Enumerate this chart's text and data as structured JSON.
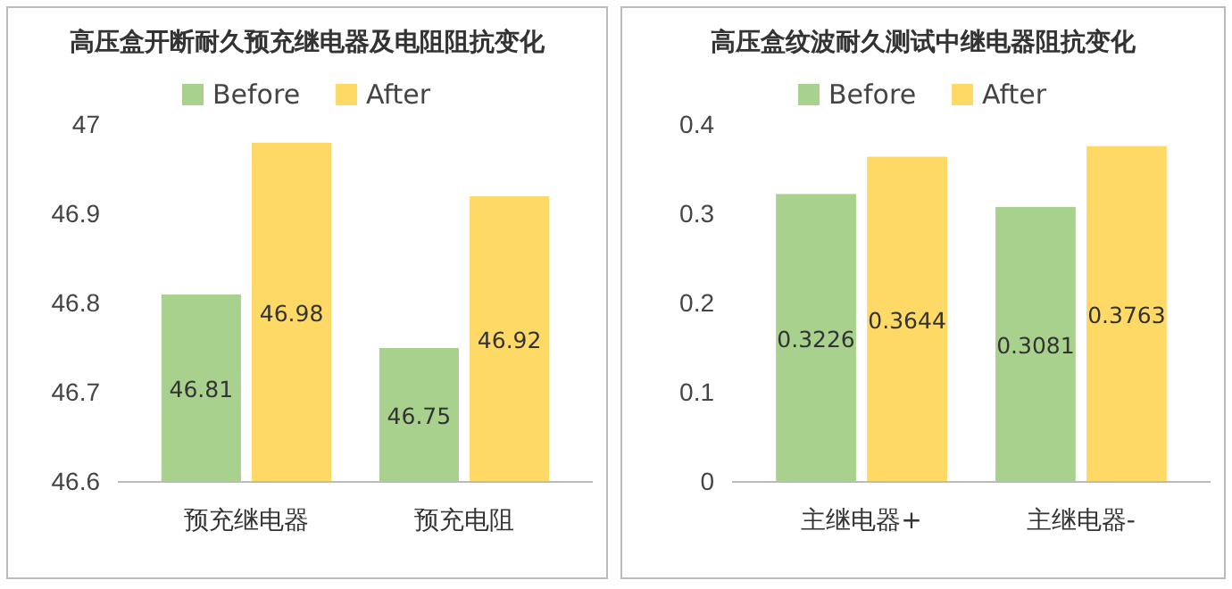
{
  "chart_data": [
    {
      "type": "bar",
      "title": "高压盒开断耐久预充继电器及电阻阻抗变化",
      "categories": [
        "预充继电器",
        "预充电阻"
      ],
      "series": [
        {
          "name": "Before",
          "color": "#a9d18e",
          "values": [
            46.81,
            46.75
          ]
        },
        {
          "name": "After",
          "color": "#ffd966",
          "values": [
            46.98,
            46.92
          ]
        }
      ],
      "ylim": [
        46.6,
        47
      ],
      "yticks": [
        46.6,
        46.7,
        46.8,
        46.9,
        47
      ],
      "data_labels": true,
      "legend": "top",
      "grid": false
    },
    {
      "type": "bar",
      "title": "高压盒纹波耐久测试中继电器阻抗变化",
      "categories": [
        "主继电器+",
        "主继电器-"
      ],
      "series": [
        {
          "name": "Before",
          "color": "#a9d18e",
          "values": [
            0.3226,
            0.3081
          ]
        },
        {
          "name": "After",
          "color": "#ffd966",
          "values": [
            0.3644,
            0.3763
          ]
        }
      ],
      "ylim": [
        0,
        0.4
      ],
      "yticks": [
        0,
        0.1,
        0.2,
        0.3,
        0.4
      ],
      "data_labels": true,
      "legend": "top",
      "grid": false
    }
  ]
}
